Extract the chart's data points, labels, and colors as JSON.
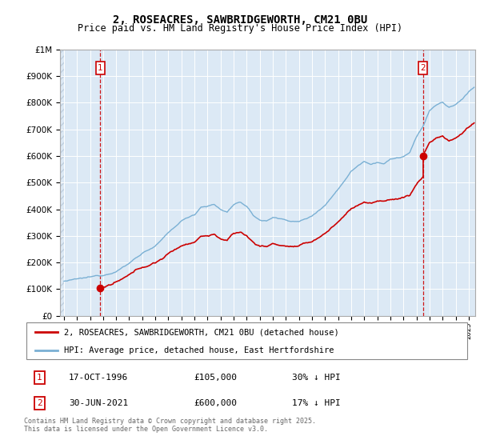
{
  "title": "2, ROSEACRES, SAWBRIDGEWORTH, CM21 0BU",
  "subtitle": "Price paid vs. HM Land Registry's House Price Index (HPI)",
  "sale1_date": "17-OCT-1996",
  "sale1_price": 105000,
  "sale1_label": "1",
  "sale1_year": 1996.79,
  "sale2_date": "30-JUN-2021",
  "sale2_price": 600000,
  "sale2_label": "2",
  "sale2_year": 2021.49,
  "legend_line1": "2, ROSEACRES, SAWBRIDGEWORTH, CM21 0BU (detached house)",
  "legend_line2": "HPI: Average price, detached house, East Hertfordshire",
  "table_row1": [
    "1",
    "17-OCT-1996",
    "£105,000",
    "30% ↓ HPI"
  ],
  "table_row2": [
    "2",
    "30-JUN-2021",
    "£600,000",
    "17% ↓ HPI"
  ],
  "footnote": "Contains HM Land Registry data © Crown copyright and database right 2025.\nThis data is licensed under the Open Government Licence v3.0.",
  "red_color": "#cc0000",
  "hpi_color": "#7ab0d4",
  "bg_color": "#dce9f5",
  "hatch_color": "#c0d0e0",
  "ylim_max": 1000000,
  "xmin": 1993.7,
  "xmax": 2025.5
}
